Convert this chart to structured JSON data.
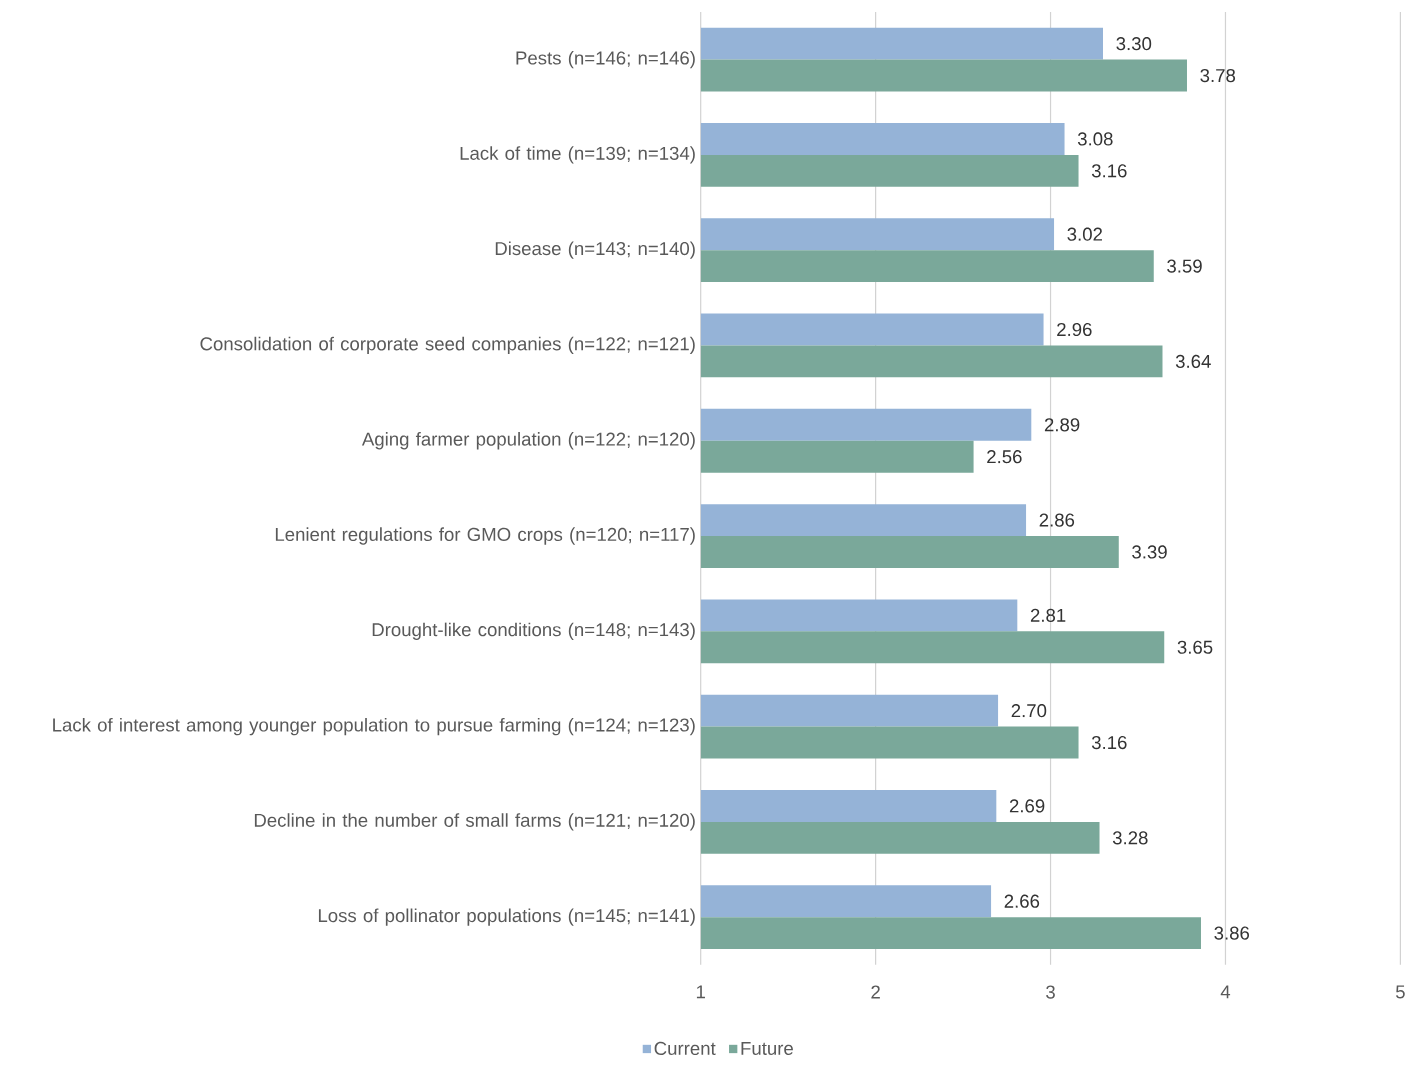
{
  "chart_data": {
    "type": "bar",
    "orientation": "horizontal",
    "categories": [
      "Pests (n=146; n=146)",
      "Lack of time (n=139; n=134)",
      "Disease (n=143; n=140)",
      "Consolidation of corporate seed companies (n=122; n=121)",
      "Aging farmer population (n=122; n=120)",
      "Lenient regulations for GMO crops (n=120; n=117)",
      "Drought-like conditions (n=148; n=143)",
      "Lack of interest among younger population to pursue farming (n=124; n=123)",
      "Decline in the number of small farms (n=121; n=120)",
      "Loss of pollinator populations (n=145; n=141)"
    ],
    "series": [
      {
        "name": "Current",
        "color": "#95b3d7",
        "values": [
          3.3,
          3.08,
          3.02,
          2.96,
          2.89,
          2.86,
          2.81,
          2.7,
          2.69,
          2.66
        ],
        "value_labels": [
          "3.30",
          "3.08",
          "3.02",
          "2.96",
          "2.89",
          "2.86",
          "2.81",
          "2.70",
          "2.69",
          "2.66"
        ]
      },
      {
        "name": "Future",
        "color": "#7aa89a",
        "values": [
          3.78,
          3.16,
          3.59,
          3.64,
          2.56,
          3.39,
          3.65,
          3.16,
          3.28,
          3.86
        ],
        "value_labels": [
          "3.78",
          "3.16",
          "3.59",
          "3.64",
          "2.56",
          "3.39",
          "3.65",
          "3.16",
          "3.28",
          "3.86"
        ]
      }
    ],
    "xlim": [
      1,
      5
    ],
    "xticks": [
      1,
      2,
      3,
      4,
      5
    ],
    "grid": "x",
    "legend": "bottom"
  }
}
